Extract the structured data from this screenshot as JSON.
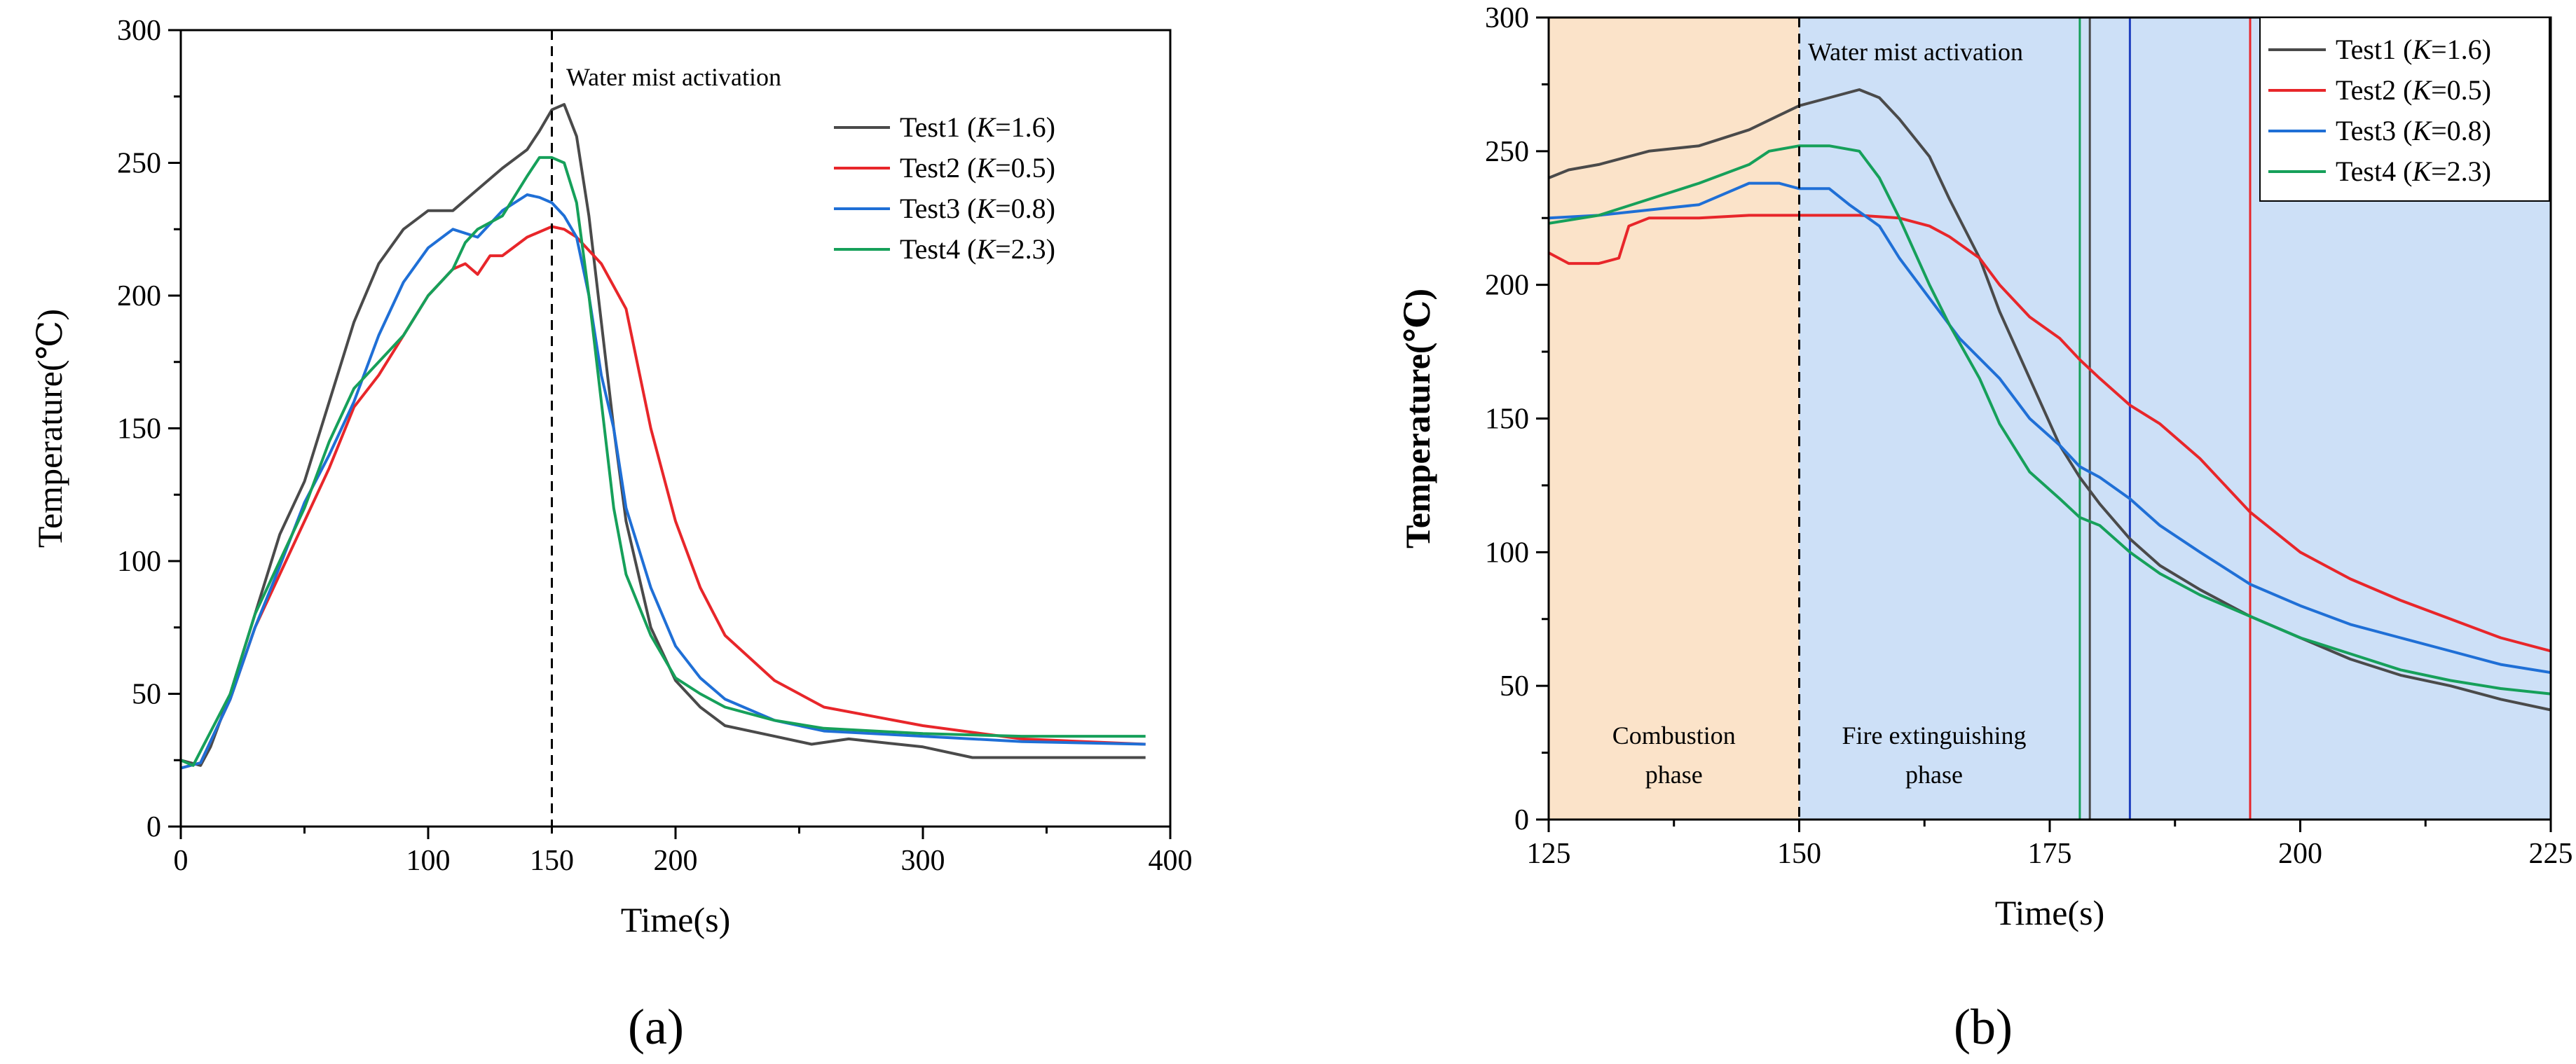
{
  "chart_data": [
    {
      "panel": "(a)",
      "type": "line",
      "xlabel": "Time(s)",
      "ylabel": "Temperature(℃)",
      "xlim": [
        0,
        400
      ],
      "ylim": [
        0,
        300
      ],
      "xticks": [
        0,
        100,
        150,
        200,
        300,
        400
      ],
      "yticks": [
        0,
        50,
        100,
        150,
        200,
        250,
        300
      ],
      "highlight_tick": 150,
      "annotation": "Water mist activation",
      "activation_time": 150,
      "legend_position": "top-right",
      "series": [
        {
          "name": "Test1 (K=1.6)",
          "label_prefix": "Test1 (",
          "label_k": "K",
          "label_suffix": "=1.6)",
          "color": "#4a4a4a",
          "x": [
            0,
            8,
            12,
            20,
            30,
            40,
            50,
            60,
            70,
            80,
            90,
            100,
            110,
            120,
            130,
            140,
            145,
            150,
            155,
            160,
            165,
            170,
            175,
            180,
            190,
            200,
            210,
            220,
            240,
            255,
            270,
            300,
            320,
            360,
            390
          ],
          "y": [
            25,
            23,
            30,
            50,
            80,
            110,
            130,
            160,
            190,
            212,
            225,
            232,
            232,
            240,
            248,
            255,
            262,
            270,
            272,
            260,
            230,
            190,
            150,
            115,
            75,
            55,
            45,
            38,
            34,
            31,
            33,
            30,
            26,
            26,
            26
          ]
        },
        {
          "name": "Test2 (K=0.5)",
          "label_prefix": "Test2 (",
          "label_k": "K",
          "label_suffix": "=0.5)",
          "color": "#e8262a",
          "x": [
            0,
            8,
            20,
            30,
            40,
            50,
            60,
            70,
            80,
            90,
            100,
            110,
            115,
            120,
            125,
            130,
            140,
            150,
            155,
            160,
            170,
            180,
            190,
            200,
            210,
            220,
            240,
            260,
            300,
            340,
            390
          ],
          "y": [
            22,
            24,
            48,
            75,
            95,
            115,
            135,
            158,
            170,
            185,
            200,
            210,
            212,
            208,
            215,
            215,
            222,
            226,
            225,
            222,
            212,
            195,
            150,
            115,
            90,
            72,
            55,
            45,
            38,
            33,
            31
          ]
        },
        {
          "name": "Test3 (K=0.8)",
          "label_prefix": "Test3 (",
          "label_k": "K",
          "label_suffix": "=0.8)",
          "color": "#1f6fd6",
          "x": [
            0,
            8,
            20,
            30,
            40,
            50,
            60,
            70,
            80,
            90,
            100,
            110,
            120,
            130,
            140,
            145,
            150,
            155,
            160,
            165,
            170,
            175,
            180,
            190,
            200,
            210,
            220,
            240,
            260,
            300,
            340,
            390
          ],
          "y": [
            22,
            24,
            48,
            75,
            98,
            122,
            140,
            160,
            185,
            205,
            218,
            225,
            222,
            232,
            238,
            237,
            235,
            230,
            222,
            200,
            170,
            150,
            120,
            90,
            68,
            56,
            48,
            40,
            36,
            34,
            32,
            31
          ]
        },
        {
          "name": "Test4 (K=2.3)",
          "label_prefix": "Test4 (",
          "label_k": "K",
          "label_suffix": "=2.3)",
          "color": "#16a05a",
          "x": [
            0,
            5,
            20,
            30,
            40,
            50,
            60,
            70,
            80,
            90,
            100,
            110,
            115,
            120,
            130,
            140,
            145,
            150,
            155,
            160,
            165,
            170,
            175,
            180,
            190,
            200,
            210,
            220,
            240,
            260,
            300,
            340,
            390
          ],
          "y": [
            25,
            23,
            50,
            80,
            100,
            120,
            145,
            165,
            175,
            185,
            200,
            210,
            220,
            225,
            230,
            245,
            252,
            252,
            250,
            235,
            200,
            160,
            120,
            95,
            72,
            56,
            50,
            45,
            40,
            37,
            35,
            34,
            34
          ]
        }
      ]
    },
    {
      "panel": "(b)",
      "type": "line",
      "xlabel": "Time(s)",
      "ylabel": "Temperature(℃)",
      "xlim": [
        125,
        225
      ],
      "ylim": [
        0,
        300
      ],
      "xticks": [
        125,
        150,
        175,
        200,
        225
      ],
      "yticks": [
        0,
        50,
        100,
        150,
        200,
        250,
        300
      ],
      "highlight_tick": 150,
      "annotation": "Water mist activation",
      "activation_time": 150,
      "phases": [
        {
          "label_line1": "Combustion",
          "label_line2": "phase",
          "x_start": 125,
          "x_end": 150,
          "color": "#fbe3c9"
        },
        {
          "label_line1": "Fire extinguishing",
          "label_line2": "phase",
          "x_start": 150,
          "x_end": 225,
          "color": "#cde0f7"
        }
      ],
      "extinguish_markers": [
        {
          "x": 178,
          "color": "#16a05a"
        },
        {
          "x": 179,
          "color": "#4a4a4a"
        },
        {
          "x": 183,
          "color": "#1f3fbf"
        },
        {
          "x": 195,
          "color": "#e8262a"
        }
      ],
      "legend_position": "top-right",
      "series": [
        {
          "name": "Test1 (K=1.6)",
          "label_prefix": "Test1 (",
          "label_k": "K",
          "label_suffix": "=1.6)",
          "color": "#4a4a4a",
          "x": [
            125,
            127,
            130,
            135,
            140,
            145,
            150,
            153,
            156,
            158,
            160,
            163,
            165,
            168,
            170,
            173,
            176,
            178,
            180,
            183,
            186,
            190,
            195,
            200,
            205,
            210,
            215,
            220,
            225
          ],
          "y": [
            240,
            243,
            245,
            250,
            252,
            258,
            267,
            270,
            273,
            270,
            262,
            248,
            232,
            210,
            190,
            165,
            140,
            128,
            118,
            105,
            95,
            86,
            76,
            68,
            60,
            54,
            50,
            45,
            41
          ]
        },
        {
          "name": "Test2 (K=0.5)",
          "label_prefix": "Test2 (",
          "label_k": "K",
          "label_suffix": "=0.5)",
          "color": "#e8262a",
          "x": [
            125,
            127,
            130,
            132,
            133,
            135,
            140,
            145,
            150,
            153,
            156,
            160,
            163,
            165,
            168,
            170,
            173,
            176,
            178,
            180,
            183,
            186,
            190,
            195,
            200,
            205,
            210,
            215,
            220,
            225
          ],
          "y": [
            212,
            208,
            208,
            210,
            222,
            225,
            225,
            226,
            226,
            226,
            226,
            225,
            222,
            218,
            210,
            200,
            188,
            180,
            172,
            165,
            155,
            148,
            135,
            115,
            100,
            90,
            82,
            75,
            68,
            63
          ]
        },
        {
          "name": "Test3 (K=0.8)",
          "label_prefix": "Test3 (",
          "label_k": "K",
          "label_suffix": "=0.8)",
          "color": "#1f6fd6",
          "x": [
            125,
            130,
            135,
            140,
            145,
            148,
            150,
            153,
            155,
            158,
            160,
            163,
            166,
            170,
            173,
            176,
            178,
            180,
            183,
            186,
            190,
            195,
            200,
            205,
            210,
            215,
            220,
            225
          ],
          "y": [
            225,
            226,
            228,
            230,
            238,
            238,
            236,
            236,
            230,
            222,
            210,
            195,
            180,
            165,
            150,
            140,
            132,
            128,
            120,
            110,
            100,
            88,
            80,
            73,
            68,
            63,
            58,
            55
          ]
        },
        {
          "name": "Test4 (K=2.3)",
          "label_prefix": "Test4 (",
          "label_k": "K",
          "label_suffix": "=2.3)",
          "color": "#16a05a",
          "x": [
            125,
            130,
            135,
            140,
            145,
            147,
            150,
            153,
            156,
            158,
            160,
            163,
            165,
            168,
            170,
            173,
            176,
            178,
            180,
            183,
            186,
            190,
            195,
            200,
            205,
            210,
            215,
            220,
            225
          ],
          "y": [
            223,
            226,
            232,
            238,
            245,
            250,
            252,
            252,
            250,
            240,
            225,
            200,
            185,
            165,
            148,
            130,
            120,
            113,
            110,
            100,
            92,
            84,
            76,
            68,
            62,
            56,
            52,
            49,
            47
          ]
        }
      ]
    }
  ]
}
